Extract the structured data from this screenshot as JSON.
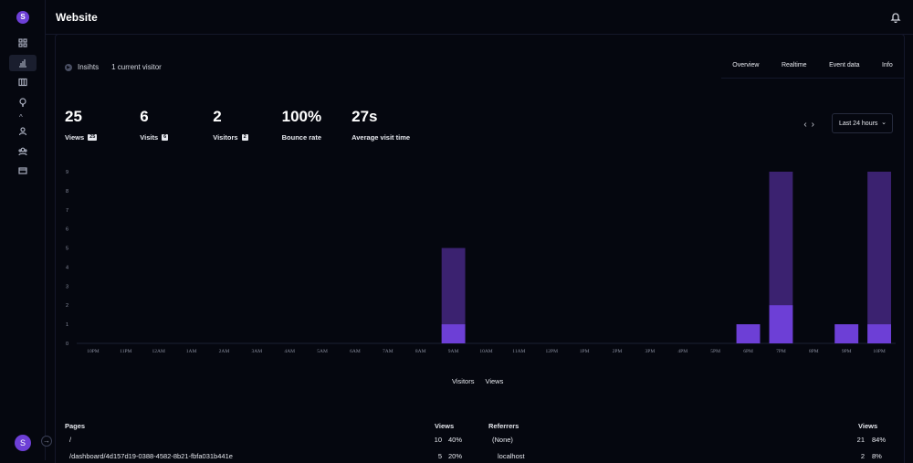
{
  "app": {
    "logo_letter": "S",
    "avatar_letter": "S",
    "accent": "#6d3fd6",
    "nav": [
      {
        "icon": "grid-icon",
        "active": false
      },
      {
        "icon": "bar-chart-icon",
        "active": true
      },
      {
        "icon": "columns-icon",
        "active": false
      },
      {
        "icon": "lightbulb-icon",
        "active": false
      },
      {
        "icon": "user-icon",
        "active": false
      },
      {
        "icon": "users-icon",
        "active": false
      },
      {
        "icon": "credit-card-icon",
        "active": false
      }
    ]
  },
  "header": {
    "title": "Website"
  },
  "insights": {
    "label": "Insihts",
    "current_visitors": "1 current visitor"
  },
  "tabs": [
    "Overview",
    "Realtime",
    "Event data",
    "Info"
  ],
  "metrics": [
    {
      "value": "25",
      "label": "Views",
      "badge": "25"
    },
    {
      "value": "6",
      "label": "Visits",
      "badge": "6"
    },
    {
      "value": "2",
      "label": "Visitors",
      "badge": "2"
    },
    {
      "value": "100%",
      "label": "Bounce rate",
      "badge": ""
    },
    {
      "value": "27s",
      "label": "Average visit time",
      "badge": ""
    }
  ],
  "range": {
    "label": "Last 24 hours"
  },
  "chart_data": {
    "type": "bar",
    "categories": [
      "10PM",
      "11PM",
      "12AM",
      "1AM",
      "2AM",
      "3AM",
      "4AM",
      "5AM",
      "6AM",
      "7AM",
      "8AM",
      "9AM",
      "10AM",
      "11AM",
      "12PM",
      "1PM",
      "2PM",
      "3PM",
      "4PM",
      "5PM",
      "6PM",
      "7PM",
      "8PM",
      "9PM",
      "10PM"
    ],
    "series": [
      {
        "name": "Visitors",
        "color": "#6d3fd6",
        "values": [
          0,
          0,
          0,
          0,
          0,
          0,
          0,
          0,
          0,
          0,
          0,
          1,
          0,
          0,
          0,
          0,
          0,
          0,
          0,
          0,
          1,
          2,
          0,
          1,
          1
        ]
      },
      {
        "name": "Views",
        "color": "#3b2270",
        "values": [
          0,
          0,
          0,
          0,
          0,
          0,
          0,
          0,
          0,
          0,
          0,
          5,
          0,
          0,
          0,
          0,
          0,
          0,
          0,
          0,
          1,
          9,
          0,
          1,
          9
        ]
      }
    ],
    "y_ticks": [
      "0",
      "1",
      "2",
      "3",
      "4",
      "5",
      "6",
      "7",
      "8",
      "9"
    ],
    "ylim": [
      0,
      9
    ],
    "stacked_overlay": true,
    "grid": false,
    "legend_position": "bottom"
  },
  "pages_table": {
    "header": "Pages",
    "value_header": "Views",
    "rows": [
      {
        "label": "/",
        "count": "10",
        "percent": "40%"
      },
      {
        "label": "/dashboard/4d157d19-0388-4582-8b21-fbfa031b441e",
        "count": "5",
        "percent": "20%"
      }
    ]
  },
  "referrers_table": {
    "header": "Referrers",
    "value_header": "Views",
    "rows": [
      {
        "label": "(None)",
        "count": "21",
        "percent": "84%"
      },
      {
        "label": "localhost",
        "count": "2",
        "percent": "8%"
      }
    ]
  }
}
